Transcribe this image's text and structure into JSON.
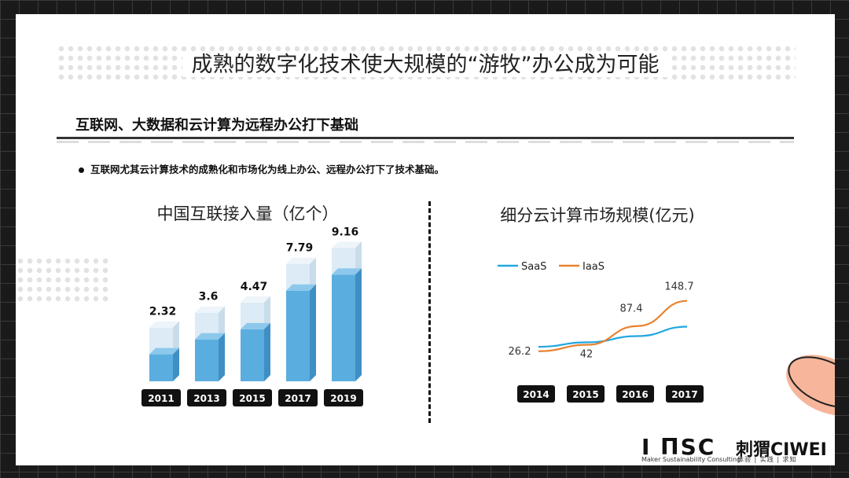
{
  "title": "成熟的数字化技术使大规模的“游牧”办公成为可能",
  "section_title": "互联网、大数据和云计算为远程办公打下基础",
  "bullet": "互联网尤其云计算技术的成熟化和市场化为线上办公、远程办公打下了技术基础。",
  "logos": {
    "msc": "I ΠSC",
    "msc_sub": "Maker Sustainability Consulting",
    "ciwei": "刺猬CIWEI",
    "ciwei_sub": "体验 | 实践 | 求知"
  },
  "chart_data": [
    {
      "type": "bar",
      "title": "中国互联接入量（亿个）",
      "categories": [
        "2011",
        "2013",
        "2015",
        "2017",
        "2019"
      ],
      "values": [
        2.32,
        3.6,
        4.47,
        7.79,
        9.16
      ],
      "value_labels": [
        "2.32",
        "3.6",
        "4.47",
        "7.79",
        "9.16"
      ],
      "color": "#5aaedf"
    },
    {
      "type": "line",
      "title": "细分云计算市场规模(亿元)",
      "categories": [
        "2014",
        "2015",
        "2016",
        "2017"
      ],
      "series": [
        {
          "name": "SaaS",
          "color": "#22a7e0",
          "values": [
            37,
            48,
            63,
            86
          ]
        },
        {
          "name": "IaaS",
          "color": "#e8822e",
          "values": [
            26.2,
            42,
            87.4,
            148.7
          ]
        }
      ],
      "data_labels": {
        "series": "IaaS",
        "labels": [
          "26.2",
          "42",
          "87.4",
          "148.7"
        ]
      },
      "ylim": [
        0,
        160
      ]
    }
  ]
}
